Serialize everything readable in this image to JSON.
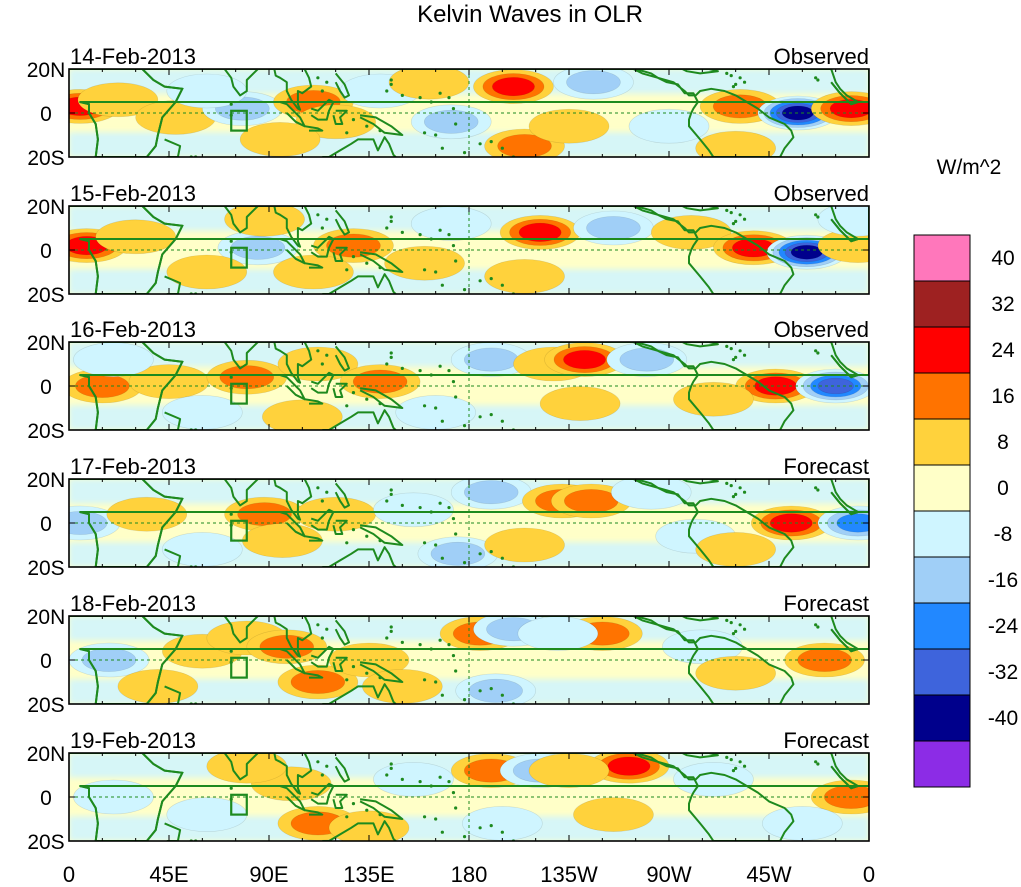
{
  "chart_data": {
    "type": "heatmap",
    "title": "Kelvin Waves in OLR",
    "units": "W/m^2",
    "variable": "OLR anomaly",
    "x_tick_labels": [
      "0",
      "45E",
      "90E",
      "135E",
      "180",
      "135W",
      "90W",
      "45W",
      "0"
    ],
    "x_ticks_deg_east": [
      0,
      45,
      90,
      135,
      180,
      225,
      270,
      315,
      360
    ],
    "xlim_deg_east": [
      0,
      360
    ],
    "y_tick_labels": [
      "20N",
      "0",
      "20S"
    ],
    "y_ticks_deg": [
      20,
      0,
      -20
    ],
    "ylim_deg": [
      -20,
      20
    ],
    "colorbar": {
      "labels": [
        "40",
        "32",
        "24",
        "16",
        "8",
        "0",
        "-8",
        "-16",
        "-24",
        "-32",
        "-40"
      ],
      "levels": [
        40,
        32,
        24,
        16,
        8,
        0,
        -8,
        -16,
        -24,
        -32,
        -40
      ],
      "colors": [
        "#ff77bb",
        "#9e2121",
        "#ff0000",
        "#ff7300",
        "#ffd23c",
        "#ffffc8",
        "#cff5ff",
        "#a0cff7",
        "#2288ff",
        "#3e64dc",
        "#00008c",
        "#8c2ce6"
      ]
    },
    "panels": [
      {
        "date": "14-Feb-2013",
        "status": "Observed",
        "anomalies": [
          {
            "lon": 5,
            "lat": 3,
            "value": 26
          },
          {
            "lon": 22,
            "lat": 6,
            "value": 10
          },
          {
            "lon": 48,
            "lat": -2,
            "value": 10
          },
          {
            "lon": 78,
            "lat": 2,
            "value": -22
          },
          {
            "lon": 62,
            "lat": 10,
            "value": -10
          },
          {
            "lon": 110,
            "lat": 5,
            "value": 16
          },
          {
            "lon": 120,
            "lat": -4,
            "value": 10
          },
          {
            "lon": 140,
            "lat": 10,
            "value": -10
          },
          {
            "lon": 172,
            "lat": -4,
            "value": -18
          },
          {
            "lon": 162,
            "lat": 14,
            "value": 10
          },
          {
            "lon": 200,
            "lat": 12,
            "value": 30
          },
          {
            "lon": 236,
            "lat": 14,
            "value": -22
          },
          {
            "lon": 205,
            "lat": -15,
            "value": 18
          },
          {
            "lon": 270,
            "lat": -6,
            "value": -10
          },
          {
            "lon": 302,
            "lat": 3,
            "value": 22
          },
          {
            "lon": 328,
            "lat": 0,
            "value": -40
          },
          {
            "lon": 352,
            "lat": 2,
            "value": 28
          },
          {
            "lon": 225,
            "lat": -6,
            "value": 10
          },
          {
            "lon": 95,
            "lat": -12,
            "value": 8
          },
          {
            "lon": 300,
            "lat": -16,
            "value": 10
          }
        ]
      },
      {
        "date": "15-Feb-2013",
        "status": "Observed",
        "anomalies": [
          {
            "lon": 8,
            "lat": 2,
            "value": 26
          },
          {
            "lon": 30,
            "lat": 6,
            "value": 10
          },
          {
            "lon": 85,
            "lat": 1,
            "value": -22
          },
          {
            "lon": 88,
            "lat": 14,
            "value": 12
          },
          {
            "lon": 128,
            "lat": 2,
            "value": 22
          },
          {
            "lon": 172,
            "lat": 12,
            "value": -12
          },
          {
            "lon": 160,
            "lat": -6,
            "value": 8
          },
          {
            "lon": 212,
            "lat": 8,
            "value": 28
          },
          {
            "lon": 245,
            "lat": 10,
            "value": -22
          },
          {
            "lon": 205,
            "lat": -12,
            "value": 8
          },
          {
            "lon": 280,
            "lat": 8,
            "value": 10
          },
          {
            "lon": 308,
            "lat": 1,
            "value": 26
          },
          {
            "lon": 332,
            "lat": -1,
            "value": -40
          },
          {
            "lon": 355,
            "lat": 2,
            "value": 14
          },
          {
            "lon": 62,
            "lat": -10,
            "value": 10
          },
          {
            "lon": 110,
            "lat": -10,
            "value": 10
          },
          {
            "lon": 355,
            "lat": 14,
            "value": -12
          }
        ]
      },
      {
        "date": "16-Feb-2013",
        "status": "Observed",
        "anomalies": [
          {
            "lon": 15,
            "lat": 0,
            "value": 20
          },
          {
            "lon": 45,
            "lat": 2,
            "value": 8
          },
          {
            "lon": 20,
            "lat": 12,
            "value": -10
          },
          {
            "lon": 80,
            "lat": 4,
            "value": 16
          },
          {
            "lon": 112,
            "lat": 10,
            "value": 10
          },
          {
            "lon": 140,
            "lat": 2,
            "value": 16
          },
          {
            "lon": 190,
            "lat": 12,
            "value": -20
          },
          {
            "lon": 218,
            "lat": 10,
            "value": 14
          },
          {
            "lon": 232,
            "lat": 12,
            "value": 24
          },
          {
            "lon": 260,
            "lat": 12,
            "value": -18
          },
          {
            "lon": 230,
            "lat": -8,
            "value": 8
          },
          {
            "lon": 318,
            "lat": 0,
            "value": 26
          },
          {
            "lon": 345,
            "lat": 0,
            "value": -32
          },
          {
            "lon": 290,
            "lat": -6,
            "value": 8
          },
          {
            "lon": 60,
            "lat": -12,
            "value": -10
          },
          {
            "lon": 105,
            "lat": -14,
            "value": 8
          },
          {
            "lon": 165,
            "lat": -12,
            "value": -8
          }
        ]
      },
      {
        "date": "17-Feb-2013",
        "status": "Forecast",
        "anomalies": [
          {
            "lon": 5,
            "lat": 0,
            "value": -18
          },
          {
            "lon": 35,
            "lat": 4,
            "value": 8
          },
          {
            "lon": 88,
            "lat": 4,
            "value": 18
          },
          {
            "lon": 96,
            "lat": -8,
            "value": 12
          },
          {
            "lon": 120,
            "lat": 4,
            "value": 10
          },
          {
            "lon": 155,
            "lat": 6,
            "value": -10
          },
          {
            "lon": 175,
            "lat": -14,
            "value": -20
          },
          {
            "lon": 190,
            "lat": 14,
            "value": -22
          },
          {
            "lon": 222,
            "lat": 10,
            "value": 16
          },
          {
            "lon": 235,
            "lat": 10,
            "value": 20
          },
          {
            "lon": 262,
            "lat": 14,
            "value": -12
          },
          {
            "lon": 282,
            "lat": -6,
            "value": -10
          },
          {
            "lon": 325,
            "lat": 0,
            "value": 24
          },
          {
            "lon": 355,
            "lat": 0,
            "value": -24
          },
          {
            "lon": 60,
            "lat": -12,
            "value": -10
          },
          {
            "lon": 205,
            "lat": -10,
            "value": 8
          },
          {
            "lon": 300,
            "lat": -12,
            "value": 8
          }
        ]
      },
      {
        "date": "18-Feb-2013",
        "status": "Forecast",
        "anomalies": [
          {
            "lon": 18,
            "lat": 0,
            "value": -16
          },
          {
            "lon": 60,
            "lat": 4,
            "value": 8
          },
          {
            "lon": 80,
            "lat": 10,
            "value": 10
          },
          {
            "lon": 98,
            "lat": 6,
            "value": 16
          },
          {
            "lon": 112,
            "lat": -10,
            "value": 16
          },
          {
            "lon": 135,
            "lat": 0,
            "value": 10
          },
          {
            "lon": 185,
            "lat": 12,
            "value": 18
          },
          {
            "lon": 200,
            "lat": 14,
            "value": -20
          },
          {
            "lon": 240,
            "lat": 12,
            "value": 20
          },
          {
            "lon": 220,
            "lat": 12,
            "value": -12
          },
          {
            "lon": 192,
            "lat": -14,
            "value": -20
          },
          {
            "lon": 285,
            "lat": 6,
            "value": -12
          },
          {
            "lon": 340,
            "lat": 0,
            "value": 20
          },
          {
            "lon": 150,
            "lat": -12,
            "value": 12
          },
          {
            "lon": 40,
            "lat": -12,
            "value": 8
          },
          {
            "lon": 300,
            "lat": -6,
            "value": 8
          }
        ]
      },
      {
        "date": "19-Feb-2013",
        "status": "Forecast",
        "anomalies": [
          {
            "lon": 20,
            "lat": 0,
            "value": -10
          },
          {
            "lon": 62,
            "lat": -8,
            "value": -12
          },
          {
            "lon": 100,
            "lat": 6,
            "value": 12
          },
          {
            "lon": 112,
            "lat": -12,
            "value": 16
          },
          {
            "lon": 135,
            "lat": -14,
            "value": 12
          },
          {
            "lon": 190,
            "lat": 12,
            "value": 22
          },
          {
            "lon": 212,
            "lat": 12,
            "value": -20
          },
          {
            "lon": 252,
            "lat": 14,
            "value": 24
          },
          {
            "lon": 225,
            "lat": 12,
            "value": 8
          },
          {
            "lon": 195,
            "lat": -12,
            "value": -10
          },
          {
            "lon": 245,
            "lat": -8,
            "value": 8
          },
          {
            "lon": 290,
            "lat": 8,
            "value": -8
          },
          {
            "lon": 352,
            "lat": 0,
            "value": 20
          },
          {
            "lon": 155,
            "lat": 8,
            "value": -8
          },
          {
            "lon": 80,
            "lat": 14,
            "value": 8
          },
          {
            "lon": 330,
            "lat": -12,
            "value": -8
          }
        ]
      }
    ]
  }
}
